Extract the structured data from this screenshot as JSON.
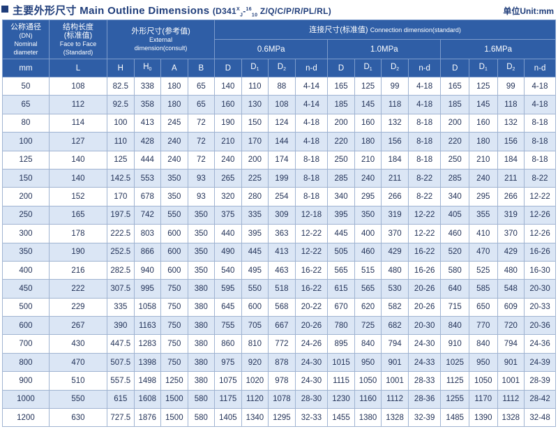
{
  "header": {
    "title": "主要外形尺寸 Main Outline  Dimensions",
    "model_prefix": "(D341",
    "model_sup": "X",
    "model_sub": "J",
    "model_dash": "-",
    "model_frac_top": "16",
    "model_frac_bot": "10",
    "model_suffix": "Z/Q/C/P/R/PL/RL)",
    "unit": "单位Unit:mm"
  },
  "columns": {
    "dn_cn": "公称通径",
    "dn_en1": "(DN)",
    "dn_en2": "Nominal",
    "dn_en3": "diameter",
    "l_cn": "结构长度",
    "l_cn2": "(标准值)",
    "l_en1": "Face to Face",
    "l_en2": "(Standard)",
    "ext_cn": "外形尺寸(参考值)",
    "ext_en1": "External",
    "ext_en2": "dimension(consult)",
    "conn_cn": "连接尺寸(标准值)",
    "conn_en": "Connection dimension(standard)",
    "p1": "0.6MPa",
    "p2": "1.0MPa",
    "p3": "1.6MPa",
    "mm": "mm",
    "L": "L",
    "H": "H",
    "H0": "H",
    "H0_sub": "0",
    "A": "A",
    "B": "B",
    "D": "D",
    "D1": "D",
    "D1_sub": "1",
    "D2": "D",
    "D2_sub": "2",
    "nd": "n-d"
  },
  "rows": [
    [
      "50",
      "108",
      "82.5",
      "338",
      "180",
      "65",
      "140",
      "110",
      "88",
      "4-14",
      "165",
      "125",
      "99",
      "4-18",
      "165",
      "125",
      "99",
      "4-18"
    ],
    [
      "65",
      "112",
      "92.5",
      "358",
      "180",
      "65",
      "160",
      "130",
      "108",
      "4-14",
      "185",
      "145",
      "118",
      "4-18",
      "185",
      "145",
      "118",
      "4-18"
    ],
    [
      "80",
      "114",
      "100",
      "413",
      "245",
      "72",
      "190",
      "150",
      "124",
      "4-18",
      "200",
      "160",
      "132",
      "8-18",
      "200",
      "160",
      "132",
      "8-18"
    ],
    [
      "100",
      "127",
      "110",
      "428",
      "240",
      "72",
      "210",
      "170",
      "144",
      "4-18",
      "220",
      "180",
      "156",
      "8-18",
      "220",
      "180",
      "156",
      "8-18"
    ],
    [
      "125",
      "140",
      "125",
      "444",
      "240",
      "72",
      "240",
      "200",
      "174",
      "8-18",
      "250",
      "210",
      "184",
      "8-18",
      "250",
      "210",
      "184",
      "8-18"
    ],
    [
      "150",
      "140",
      "142.5",
      "553",
      "350",
      "93",
      "265",
      "225",
      "199",
      "8-18",
      "285",
      "240",
      "211",
      "8-22",
      "285",
      "240",
      "211",
      "8-22"
    ],
    [
      "200",
      "152",
      "170",
      "678",
      "350",
      "93",
      "320",
      "280",
      "254",
      "8-18",
      "340",
      "295",
      "266",
      "8-22",
      "340",
      "295",
      "266",
      "12-22"
    ],
    [
      "250",
      "165",
      "197.5",
      "742",
      "550",
      "350",
      "375",
      "335",
      "309",
      "12-18",
      "395",
      "350",
      "319",
      "12-22",
      "405",
      "355",
      "319",
      "12-26"
    ],
    [
      "300",
      "178",
      "222.5",
      "803",
      "600",
      "350",
      "440",
      "395",
      "363",
      "12-22",
      "445",
      "400",
      "370",
      "12-22",
      "460",
      "410",
      "370",
      "12-26"
    ],
    [
      "350",
      "190",
      "252.5",
      "866",
      "600",
      "350",
      "490",
      "445",
      "413",
      "12-22",
      "505",
      "460",
      "429",
      "16-22",
      "520",
      "470",
      "429",
      "16-26"
    ],
    [
      "400",
      "216",
      "282.5",
      "940",
      "600",
      "350",
      "540",
      "495",
      "463",
      "16-22",
      "565",
      "515",
      "480",
      "16-26",
      "580",
      "525",
      "480",
      "16-30"
    ],
    [
      "450",
      "222",
      "307.5",
      "995",
      "750",
      "380",
      "595",
      "550",
      "518",
      "16-22",
      "615",
      "565",
      "530",
      "20-26",
      "640",
      "585",
      "548",
      "20-30"
    ],
    [
      "500",
      "229",
      "335",
      "1058",
      "750",
      "380",
      "645",
      "600",
      "568",
      "20-22",
      "670",
      "620",
      "582",
      "20-26",
      "715",
      "650",
      "609",
      "20-33"
    ],
    [
      "600",
      "267",
      "390",
      "1163",
      "750",
      "380",
      "755",
      "705",
      "667",
      "20-26",
      "780",
      "725",
      "682",
      "20-30",
      "840",
      "770",
      "720",
      "20-36"
    ],
    [
      "700",
      "430",
      "447.5",
      "1283",
      "750",
      "380",
      "860",
      "810",
      "772",
      "24-26",
      "895",
      "840",
      "794",
      "24-30",
      "910",
      "840",
      "794",
      "24-36"
    ],
    [
      "800",
      "470",
      "507.5",
      "1398",
      "750",
      "380",
      "975",
      "920",
      "878",
      "24-30",
      "1015",
      "950",
      "901",
      "24-33",
      "1025",
      "950",
      "901",
      "24-39"
    ],
    [
      "900",
      "510",
      "557.5",
      "1498",
      "1250",
      "380",
      "1075",
      "1020",
      "978",
      "24-30",
      "1115",
      "1050",
      "1001",
      "28-33",
      "1125",
      "1050",
      "1001",
      "28-39"
    ],
    [
      "1000",
      "550",
      "615",
      "1608",
      "1500",
      "580",
      "1175",
      "1120",
      "1078",
      "28-30",
      "1230",
      "1160",
      "1112",
      "28-36",
      "1255",
      "1170",
      "1112",
      "28-42"
    ],
    [
      "1200",
      "630",
      "727.5",
      "1876",
      "1500",
      "580",
      "1405",
      "1340",
      "1295",
      "32-33",
      "1455",
      "1380",
      "1328",
      "32-39",
      "1485",
      "1390",
      "1328",
      "32-48"
    ]
  ]
}
